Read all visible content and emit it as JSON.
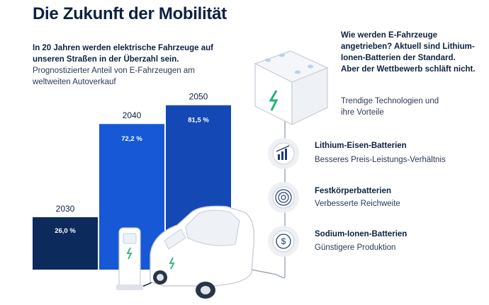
{
  "page": {
    "title": "Die Zukunft der Mobilität",
    "intro_bold": "In 20 Jahren werden elektrische Fahrzeuge auf unseren Straßen in der Überzahl sein.",
    "intro_sub": "Prognostizierter Anteil von E-Fahrzeugen am weltweiten Autoverkauf",
    "right_bold": "Wie werden E-Fahrzeuge angetrieben? Aktuell sind Lithium-Ionen-Batterien der Standard. Aber der Wettbewerb schläft nicht.",
    "right_sub": "Trendige Technologien und ihre Vorteile"
  },
  "technologies": [
    {
      "title": "Lithium-Eisen-Batterien",
      "desc": "Besseres Preis-Leistungs-Verhältnis",
      "icon": "bar-chart-growth-icon"
    },
    {
      "title": "Festkörperbatterien",
      "desc": "Verbesserte Reichweite",
      "icon": "concentric-circles-icon"
    },
    {
      "title": "Sodium-Ionen-Batterien",
      "desc": "Günstigere Produktion",
      "icon": "dollar-coin-icon"
    }
  ],
  "chart_data": {
    "type": "bar",
    "categories": [
      "2030",
      "2040",
      "2050"
    ],
    "values": [
      26.0,
      72.2,
      81.5
    ],
    "value_labels": [
      "26,0 %",
      "72,2 %",
      "81,5 %"
    ],
    "unit": "%",
    "colors": [
      "#0d2a5c",
      "#1658d6",
      "#1448b4"
    ],
    "title": "",
    "xlabel": "",
    "ylabel": "",
    "grid": false,
    "legend": "none"
  },
  "colors": {
    "text_dark": "#0d2140",
    "battery_green": "#22b573",
    "icon_circle": "#eef0f4",
    "icon_stroke": "#1c3a7a"
  }
}
